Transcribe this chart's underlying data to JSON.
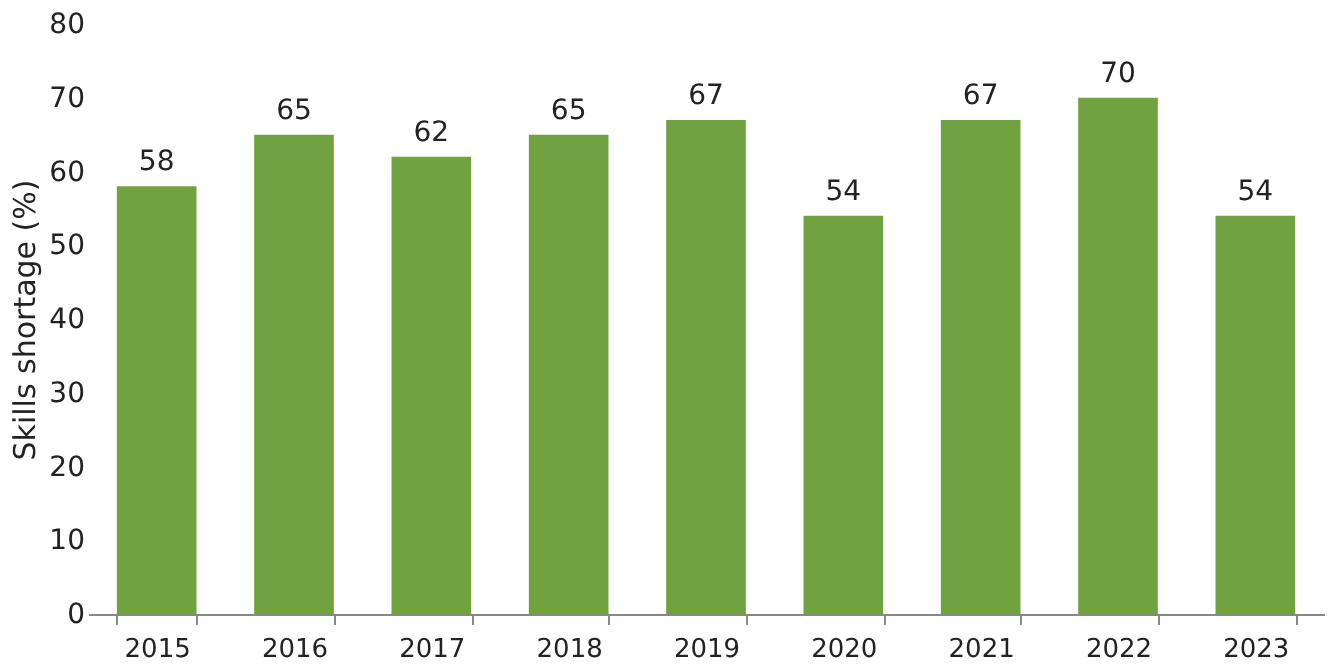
{
  "chart_data": {
    "type": "bar",
    "ylabel": "Skills shortage (%)",
    "categories": [
      "2015",
      "2016",
      "2017",
      "2018",
      "2019",
      "2020",
      "2021",
      "2022",
      "2023"
    ],
    "values": [
      58,
      65,
      62,
      65,
      67,
      54,
      67,
      70,
      54
    ],
    "color": "#70a33f",
    "ylim": [
      0,
      80
    ],
    "yticks": [
      0,
      10,
      20,
      30,
      40,
      50,
      60,
      70,
      80
    ],
    "grid": false,
    "data_labels": true
  }
}
